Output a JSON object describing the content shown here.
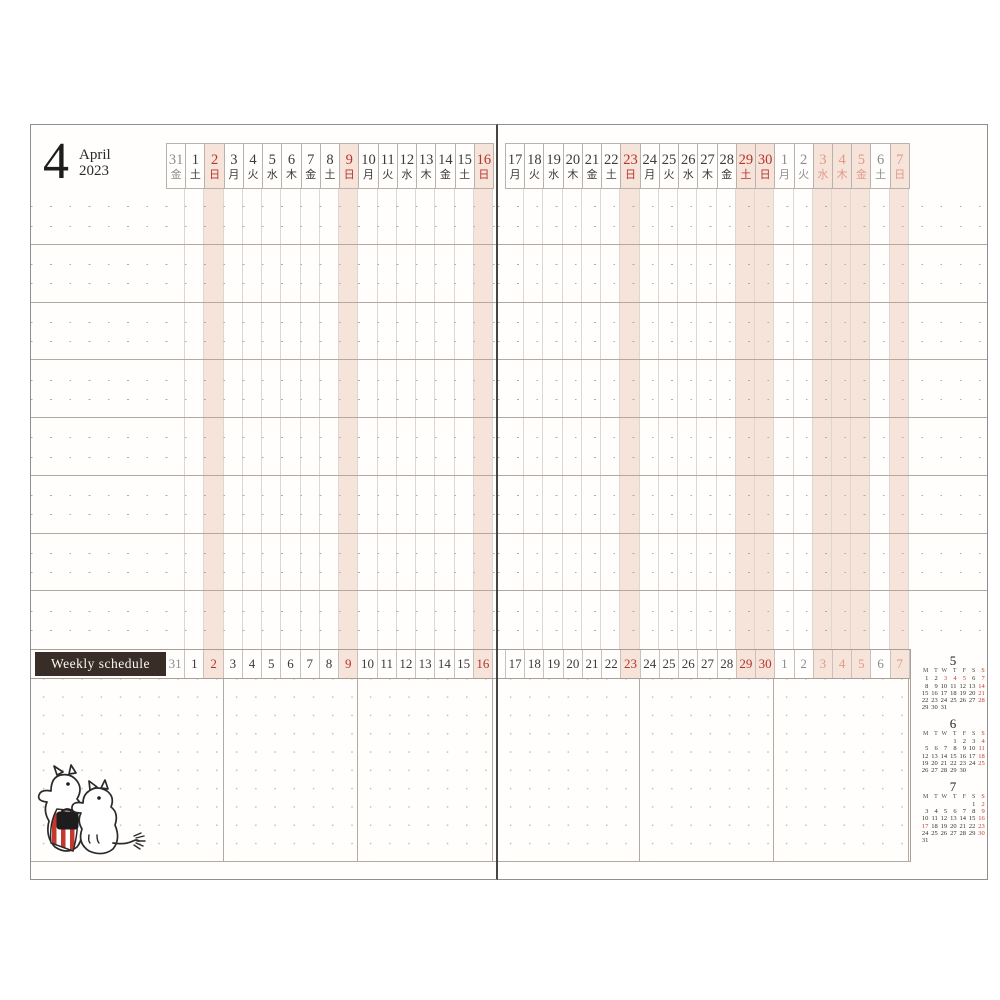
{
  "header": {
    "month_number": "4",
    "month_name": "April",
    "year": "2023"
  },
  "weekly_label": "Weekly schedule",
  "colors": {
    "pink_highlight": "#f6e3da",
    "holiday_red": "#b5352c",
    "next_month_holiday_salmon": "#df9b8a",
    "muted_gray": "#8d8d8d",
    "ink": "#3b3b3b",
    "weekly_bar": "#382d27"
  },
  "left_page": {
    "dates": [
      {
        "d": "31",
        "w": "金",
        "t": "gray"
      },
      {
        "d": "1",
        "w": "土",
        "t": "n"
      },
      {
        "d": "2",
        "w": "日",
        "t": "red"
      },
      {
        "d": "3",
        "w": "月",
        "t": "n"
      },
      {
        "d": "4",
        "w": "火",
        "t": "n"
      },
      {
        "d": "5",
        "w": "水",
        "t": "n"
      },
      {
        "d": "6",
        "w": "木",
        "t": "n"
      },
      {
        "d": "7",
        "w": "金",
        "t": "n"
      },
      {
        "d": "8",
        "w": "土",
        "t": "n"
      },
      {
        "d": "9",
        "w": "日",
        "t": "red"
      },
      {
        "d": "10",
        "w": "月",
        "t": "n"
      },
      {
        "d": "11",
        "w": "火",
        "t": "n"
      },
      {
        "d": "12",
        "w": "水",
        "t": "n"
      },
      {
        "d": "13",
        "w": "木",
        "t": "n"
      },
      {
        "d": "14",
        "w": "金",
        "t": "n"
      },
      {
        "d": "15",
        "w": "土",
        "t": "n"
      },
      {
        "d": "16",
        "w": "日",
        "t": "red"
      }
    ]
  },
  "right_page": {
    "dates": [
      {
        "d": "17",
        "w": "月",
        "t": "n"
      },
      {
        "d": "18",
        "w": "火",
        "t": "n"
      },
      {
        "d": "19",
        "w": "水",
        "t": "n"
      },
      {
        "d": "20",
        "w": "木",
        "t": "n"
      },
      {
        "d": "21",
        "w": "金",
        "t": "n"
      },
      {
        "d": "22",
        "w": "土",
        "t": "n"
      },
      {
        "d": "23",
        "w": "日",
        "t": "red"
      },
      {
        "d": "24",
        "w": "月",
        "t": "n"
      },
      {
        "d": "25",
        "w": "火",
        "t": "n"
      },
      {
        "d": "26",
        "w": "水",
        "t": "n"
      },
      {
        "d": "27",
        "w": "木",
        "t": "n"
      },
      {
        "d": "28",
        "w": "金",
        "t": "n"
      },
      {
        "d": "29",
        "w": "土",
        "t": "red"
      },
      {
        "d": "30",
        "w": "日",
        "t": "red"
      },
      {
        "d": "1",
        "w": "月",
        "t": "gray"
      },
      {
        "d": "2",
        "w": "火",
        "t": "gray"
      },
      {
        "d": "3",
        "w": "水",
        "t": "sal"
      },
      {
        "d": "4",
        "w": "木",
        "t": "sal"
      },
      {
        "d": "5",
        "w": "金",
        "t": "sal"
      },
      {
        "d": "6",
        "w": "土",
        "t": "gray"
      },
      {
        "d": "7",
        "w": "日",
        "t": "sal"
      }
    ]
  },
  "mini_calendars": [
    {
      "month": "5",
      "dow": [
        "M",
        "T",
        "W",
        "T",
        "F",
        "S",
        "S"
      ],
      "weeks": [
        [
          1,
          2,
          3,
          4,
          5,
          6,
          7
        ],
        [
          8,
          9,
          10,
          11,
          12,
          13,
          14
        ],
        [
          15,
          16,
          17,
          18,
          19,
          20,
          21
        ],
        [
          22,
          23,
          24,
          25,
          26,
          27,
          28
        ],
        [
          29,
          30,
          31,
          null,
          null,
          null,
          null
        ]
      ],
      "red": [
        3,
        4,
        5,
        7,
        14,
        21,
        28
      ]
    },
    {
      "month": "6",
      "dow": [
        "M",
        "T",
        "W",
        "T",
        "F",
        "S",
        "S"
      ],
      "weeks": [
        [
          null,
          null,
          null,
          1,
          2,
          3,
          4
        ],
        [
          5,
          6,
          7,
          8,
          9,
          10,
          11
        ],
        [
          12,
          13,
          14,
          15,
          16,
          17,
          18
        ],
        [
          19,
          20,
          21,
          22,
          23,
          24,
          25
        ],
        [
          26,
          27,
          28,
          29,
          30,
          null,
          null
        ]
      ],
      "red": [
        4,
        11,
        18,
        25
      ]
    },
    {
      "month": "7",
      "dow": [
        "M",
        "T",
        "W",
        "T",
        "F",
        "S",
        "S"
      ],
      "weeks": [
        [
          null,
          null,
          null,
          null,
          null,
          1,
          2
        ],
        [
          3,
          4,
          5,
          6,
          7,
          8,
          9
        ],
        [
          10,
          11,
          12,
          13,
          14,
          15,
          16
        ],
        [
          17,
          18,
          19,
          20,
          21,
          22,
          23
        ],
        [
          24,
          25,
          26,
          27,
          28,
          29,
          30
        ],
        [
          31,
          null,
          null,
          null,
          null,
          null,
          null
        ]
      ],
      "red": [
        2,
        9,
        16,
        17,
        23,
        30
      ]
    }
  ]
}
